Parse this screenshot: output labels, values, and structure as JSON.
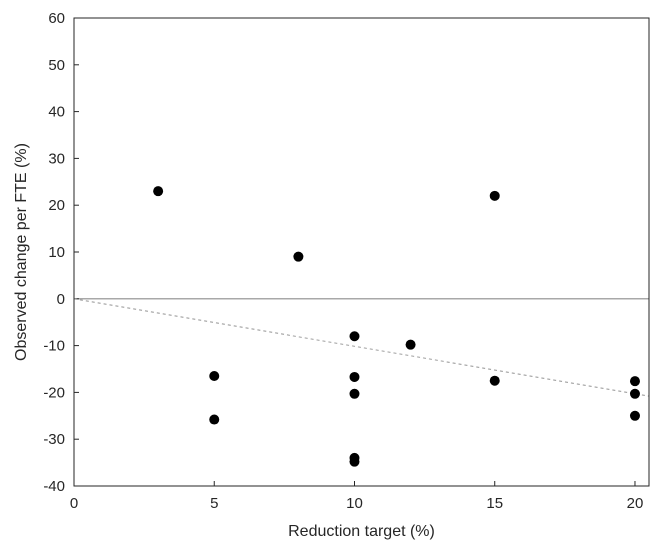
{
  "chart_data": {
    "type": "scatter",
    "title": "",
    "xlabel": "Reduction target (%)",
    "ylabel": "Observed change per FTE (%)",
    "xlim": [
      0,
      20.5
    ],
    "ylim": [
      -40,
      60
    ],
    "xticks": [
      0,
      5,
      10,
      15,
      20
    ],
    "yticks": [
      -40,
      -30,
      -20,
      -10,
      0,
      10,
      20,
      30,
      40,
      50,
      60
    ],
    "grid": false,
    "legend": "none",
    "series": [
      {
        "points": [
          {
            "x": 3,
            "y": 23
          },
          {
            "x": 5,
            "y": -16.5
          },
          {
            "x": 5,
            "y": -25.8
          },
          {
            "x": 8,
            "y": 9
          },
          {
            "x": 10,
            "y": -8
          },
          {
            "x": 10,
            "y": -16.7
          },
          {
            "x": 10,
            "y": -20.3
          },
          {
            "x": 10,
            "y": -34
          },
          {
            "x": 10,
            "y": -34.8
          },
          {
            "x": 12,
            "y": -9.8
          },
          {
            "x": 15,
            "y": 22
          },
          {
            "x": 15,
            "y": -17.5
          },
          {
            "x": 20,
            "y": -17.6
          },
          {
            "x": 20,
            "y": -20.3
          },
          {
            "x": 20,
            "y": -25
          }
        ],
        "color": "#000000"
      }
    ],
    "reference_lines": [
      {
        "kind": "horizontal",
        "y": 0,
        "style": "solid",
        "color": "#8c8c8c"
      }
    ],
    "trend_line": {
      "style": "dashed",
      "color": "#a0a0a0",
      "from": {
        "x": 0,
        "y": 0
      },
      "to": {
        "x": 20.5,
        "y": -20.8
      }
    }
  }
}
